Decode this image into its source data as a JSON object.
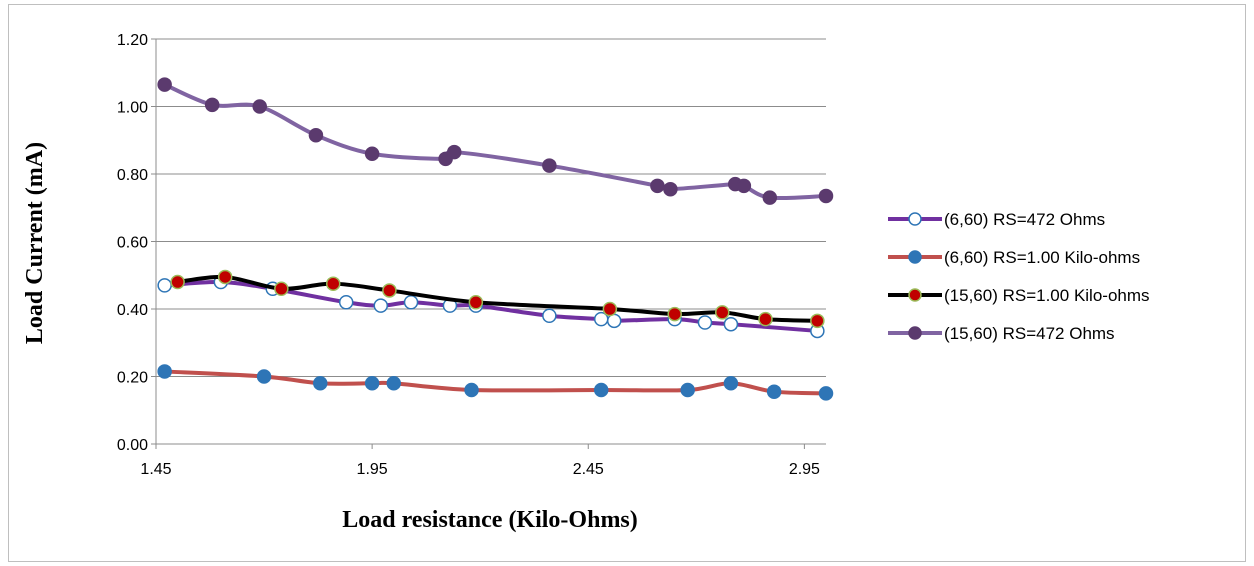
{
  "chart_data": {
    "type": "line",
    "title": "",
    "xlabel": "Load resistance (Kilo-Ohms)",
    "ylabel": "Load Current (mA)",
    "xlim": [
      1.45,
      3.0
    ],
    "ylim": [
      0.0,
      1.2
    ],
    "x_ticks": [
      "1.45",
      "1.95",
      "2.45",
      "2.95"
    ],
    "x_tick_values": [
      1.45,
      1.95,
      2.45,
      2.95
    ],
    "y_ticks": [
      "0.00",
      "0.20",
      "0.40",
      "0.60",
      "0.80",
      "1.00",
      "1.20"
    ],
    "y_tick_values": [
      0.0,
      0.2,
      0.4,
      0.6,
      0.8,
      1.0,
      1.2
    ],
    "grid": "horizontal",
    "legend_position": "right",
    "series": [
      {
        "name": "(6,60) RS=472 Ohms",
        "line_color": "#7030a0",
        "marker_fill": "#ffffff",
        "marker_stroke": "#2e75b6",
        "x": [
          1.47,
          1.6,
          1.72,
          1.89,
          1.97,
          2.04,
          2.13,
          2.19,
          2.36,
          2.48,
          2.51,
          2.65,
          2.72,
          2.78,
          2.98
        ],
        "y": [
          0.47,
          0.48,
          0.46,
          0.42,
          0.41,
          0.42,
          0.41,
          0.41,
          0.38,
          0.37,
          0.365,
          0.37,
          0.36,
          0.355,
          0.335
        ]
      },
      {
        "name": "(6,60) RS=1.00 Kilo-ohms",
        "line_color": "#c0504d",
        "marker_fill": "#2e75b6",
        "marker_stroke": "#2e75b6",
        "x": [
          1.47,
          1.7,
          1.83,
          1.95,
          2.0,
          2.18,
          2.48,
          2.68,
          2.78,
          2.88,
          3.0
        ],
        "y": [
          0.215,
          0.2,
          0.18,
          0.18,
          0.18,
          0.16,
          0.16,
          0.16,
          0.18,
          0.155,
          0.15
        ]
      },
      {
        "name": "(15,60) RS=1.00 Kilo-ohms",
        "line_color": "#000000",
        "marker_fill": "#c00000",
        "marker_stroke": "#9bbb59",
        "x": [
          1.5,
          1.61,
          1.74,
          1.86,
          1.99,
          2.19,
          2.5,
          2.65,
          2.76,
          2.86,
          2.98
        ],
        "y": [
          0.48,
          0.495,
          0.46,
          0.475,
          0.455,
          0.42,
          0.4,
          0.385,
          0.39,
          0.37,
          0.365
        ]
      },
      {
        "name": "(15,60) RS=472 Ohms",
        "line_color": "#8064a2",
        "marker_fill": "#5b3a6e",
        "marker_stroke": "#5b3a6e",
        "x": [
          1.47,
          1.58,
          1.69,
          1.82,
          1.95,
          2.12,
          2.14,
          2.36,
          2.61,
          2.64,
          2.79,
          2.81,
          2.87,
          3.0
        ],
        "y": [
          1.065,
          1.005,
          1.0,
          0.915,
          0.86,
          0.845,
          0.865,
          0.825,
          0.765,
          0.755,
          0.77,
          0.765,
          0.73,
          0.735
        ]
      }
    ]
  }
}
